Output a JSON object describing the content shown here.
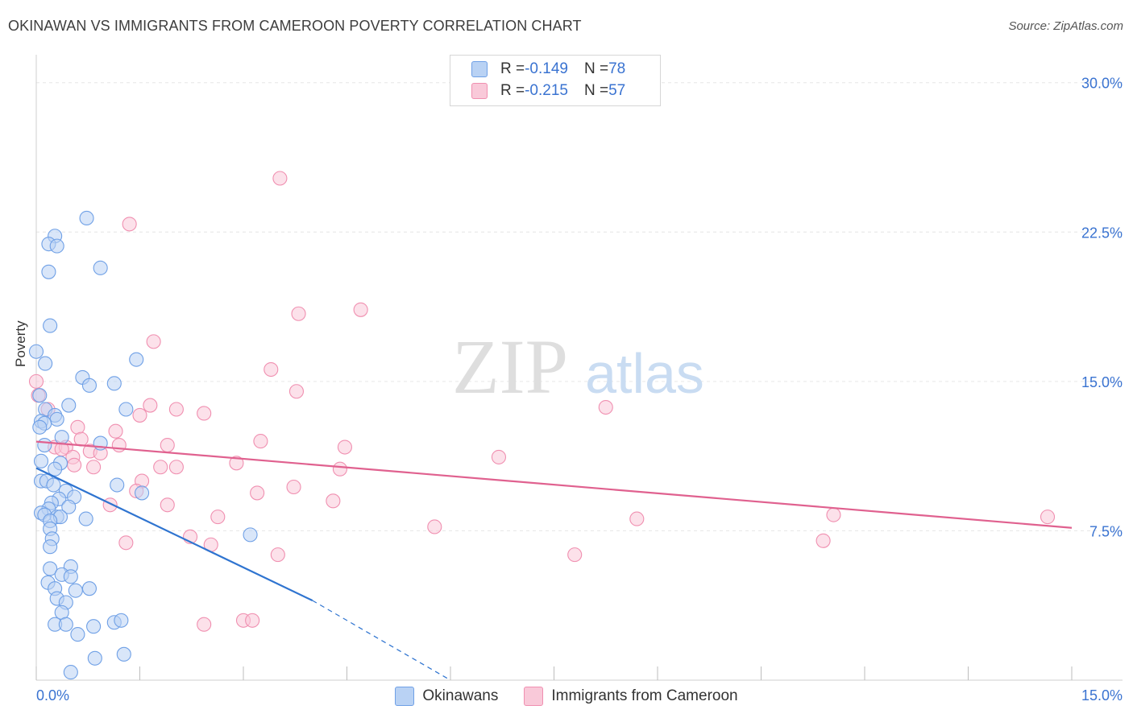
{
  "title": "OKINAWAN VS IMMIGRANTS FROM CAMEROON POVERTY CORRELATION CHART",
  "source": "Source: ZipAtlas.com",
  "watermark": {
    "zip": "ZIP",
    "atlas": "atlas"
  },
  "legend": {
    "r_label": "R = ",
    "n_label": "N = ",
    "series": [
      {
        "r": "-0.149",
        "n": "78"
      },
      {
        "r": "-0.215",
        "n": "57"
      }
    ]
  },
  "chart_data": {
    "type": "scatter",
    "title": "OKINAWAN VS IMMIGRANTS FROM CAMEROON POVERTY CORRELATION CHART",
    "xlabel": "",
    "ylabel": "Poverty",
    "xlim": [
      0,
      15
    ],
    "ylim": [
      0,
      31
    ],
    "x_tick_labels": [
      "0.0%",
      "15.0%"
    ],
    "y_ticks": [
      7.5,
      15.0,
      22.5,
      30.0
    ],
    "y_tick_labels": [
      "7.5%",
      "15.0%",
      "22.5%",
      "30.0%"
    ],
    "grid": true,
    "legend_position": "top-center",
    "series": [
      {
        "name": "Okinawans",
        "color": "#6fa0e6",
        "fill": "#b9d2f4",
        "line_color": "#2f74d0",
        "trend": {
          "x0": 0.0,
          "y0": 10.65,
          "x1": 4.0,
          "y1": 4.0,
          "dash_to_x": 6.0,
          "dash_to_y": 0.0
        },
        "points": [
          [
            0.73,
            23.2
          ],
          [
            0.27,
            22.3
          ],
          [
            0.18,
            21.9
          ],
          [
            0.3,
            21.8
          ],
          [
            0.93,
            20.7
          ],
          [
            0.18,
            20.5
          ],
          [
            0.2,
            17.8
          ],
          [
            0.0,
            16.5
          ],
          [
            0.13,
            15.9
          ],
          [
            1.45,
            16.1
          ],
          [
            0.67,
            15.2
          ],
          [
            0.77,
            14.8
          ],
          [
            1.13,
            14.9
          ],
          [
            0.05,
            14.3
          ],
          [
            0.47,
            13.8
          ],
          [
            1.3,
            13.6
          ],
          [
            0.13,
            13.6
          ],
          [
            0.27,
            13.3
          ],
          [
            0.3,
            13.1
          ],
          [
            0.07,
            13.0
          ],
          [
            0.12,
            12.9
          ],
          [
            0.05,
            12.7
          ],
          [
            0.37,
            12.2
          ],
          [
            0.93,
            11.9
          ],
          [
            0.12,
            11.8
          ],
          [
            0.07,
            11.0
          ],
          [
            0.35,
            10.9
          ],
          [
            0.27,
            10.6
          ],
          [
            0.07,
            10.0
          ],
          [
            0.15,
            10.0
          ],
          [
            0.25,
            9.8
          ],
          [
            1.17,
            9.8
          ],
          [
            0.43,
            9.5
          ],
          [
            0.55,
            9.2
          ],
          [
            0.33,
            9.1
          ],
          [
            1.53,
            9.4
          ],
          [
            0.22,
            8.9
          ],
          [
            0.47,
            8.7
          ],
          [
            0.18,
            8.6
          ],
          [
            0.07,
            8.4
          ],
          [
            0.12,
            8.3
          ],
          [
            0.3,
            8.2
          ],
          [
            0.35,
            8.2
          ],
          [
            0.72,
            8.1
          ],
          [
            0.2,
            8.0
          ],
          [
            0.2,
            7.6
          ],
          [
            0.23,
            7.1
          ],
          [
            3.1,
            7.3
          ],
          [
            0.2,
            6.7
          ],
          [
            0.2,
            5.6
          ],
          [
            0.5,
            5.7
          ],
          [
            0.37,
            5.3
          ],
          [
            0.5,
            5.2
          ],
          [
            0.17,
            4.9
          ],
          [
            0.27,
            4.6
          ],
          [
            0.57,
            4.5
          ],
          [
            0.77,
            4.6
          ],
          [
            0.3,
            4.1
          ],
          [
            0.43,
            3.9
          ],
          [
            0.37,
            3.4
          ],
          [
            0.27,
            2.8
          ],
          [
            0.43,
            2.8
          ],
          [
            0.83,
            2.7
          ],
          [
            1.13,
            2.9
          ],
          [
            1.23,
            3.0
          ],
          [
            0.6,
            2.3
          ],
          [
            1.27,
            1.3
          ],
          [
            0.85,
            1.1
          ],
          [
            0.5,
            0.4
          ]
        ]
      },
      {
        "name": "Immigrants from Cameroon",
        "color": "#f08fb0",
        "fill": "#f9c9d9",
        "line_color": "#e0618f",
        "trend": {
          "x0": 0.0,
          "y0": 11.98,
          "x1": 15.0,
          "y1": 7.65
        },
        "points": [
          [
            3.53,
            25.2
          ],
          [
            1.35,
            22.9
          ],
          [
            4.7,
            18.6
          ],
          [
            3.8,
            18.4
          ],
          [
            1.7,
            17.0
          ],
          [
            3.4,
            15.6
          ],
          [
            3.77,
            14.5
          ],
          [
            0.0,
            15.0
          ],
          [
            0.03,
            14.3
          ],
          [
            0.17,
            13.6
          ],
          [
            1.65,
            13.8
          ],
          [
            2.03,
            13.6
          ],
          [
            2.43,
            13.4
          ],
          [
            1.5,
            13.3
          ],
          [
            8.25,
            13.7
          ],
          [
            0.6,
            12.7
          ],
          [
            1.15,
            12.5
          ],
          [
            0.65,
            12.1
          ],
          [
            3.25,
            12.0
          ],
          [
            0.27,
            11.7
          ],
          [
            0.43,
            11.7
          ],
          [
            0.37,
            11.6
          ],
          [
            1.2,
            11.8
          ],
          [
            1.9,
            11.8
          ],
          [
            4.47,
            11.7
          ],
          [
            0.78,
            11.5
          ],
          [
            0.93,
            11.4
          ],
          [
            0.53,
            11.2
          ],
          [
            6.7,
            11.2
          ],
          [
            2.9,
            10.9
          ],
          [
            0.55,
            10.8
          ],
          [
            0.83,
            10.7
          ],
          [
            1.8,
            10.7
          ],
          [
            2.03,
            10.7
          ],
          [
            4.4,
            10.6
          ],
          [
            1.53,
            10.0
          ],
          [
            3.73,
            9.7
          ],
          [
            1.45,
            9.5
          ],
          [
            3.2,
            9.4
          ],
          [
            4.3,
            9.0
          ],
          [
            1.07,
            8.8
          ],
          [
            1.9,
            8.8
          ],
          [
            2.63,
            8.2
          ],
          [
            8.7,
            8.1
          ],
          [
            11.55,
            8.3
          ],
          [
            14.65,
            8.2
          ],
          [
            5.77,
            7.7
          ],
          [
            2.23,
            7.2
          ],
          [
            1.3,
            6.9
          ],
          [
            2.53,
            6.8
          ],
          [
            11.4,
            7.0
          ],
          [
            3.5,
            6.3
          ],
          [
            7.8,
            6.3
          ],
          [
            2.43,
            2.8
          ],
          [
            3.0,
            3.0
          ],
          [
            3.13,
            3.0
          ]
        ]
      }
    ]
  }
}
